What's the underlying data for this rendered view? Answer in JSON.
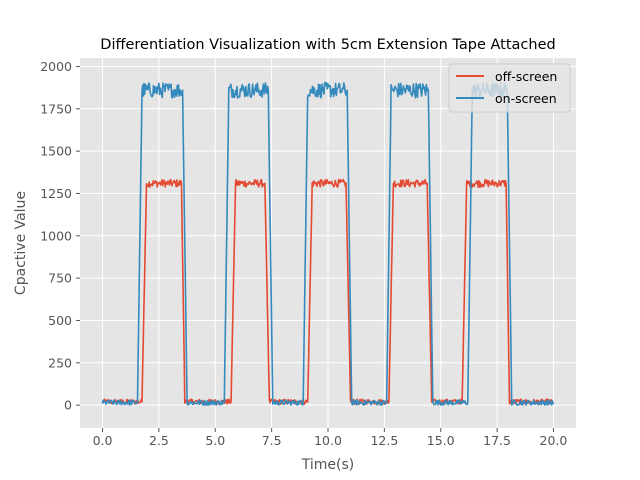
{
  "chart_data": {
    "type": "line",
    "title": "Differentiation Visualization with 5cm Extension Tape Attached",
    "xlabel": "Time(s)",
    "ylabel": "Cpactive Value",
    "xlim": [
      -1.0,
      21.0
    ],
    "ylim": [
      -135,
      2050
    ],
    "xticks": [
      0.0,
      2.5,
      5.0,
      7.5,
      10.0,
      12.5,
      15.0,
      17.5,
      20.0
    ],
    "xtick_labels": [
      "0.0",
      "2.5",
      "5.0",
      "7.5",
      "10.0",
      "12.5",
      "15.0",
      "17.5",
      "20.0"
    ],
    "yticks": [
      0,
      250,
      500,
      750,
      1000,
      1250,
      1500,
      1750,
      2000
    ],
    "ytick_labels": [
      "0",
      "250",
      "500",
      "750",
      "1000",
      "1250",
      "1500",
      "1750",
      "2000"
    ],
    "grid": true,
    "legend_position": "upper right",
    "background": "#E5E5E5",
    "series": [
      {
        "name": "off-screen",
        "color": "#E24A33",
        "x": [
          0.0,
          1.75,
          1.95,
          3.5,
          3.65,
          5.7,
          5.9,
          7.2,
          7.4,
          9.1,
          9.3,
          10.8,
          11.0,
          12.7,
          12.9,
          14.4,
          14.6,
          15.95,
          16.15,
          17.9,
          18.05,
          20.0
        ],
        "y": [
          20,
          20,
          1310,
          1310,
          20,
          20,
          1310,
          1310,
          20,
          20,
          1310,
          1310,
          20,
          20,
          1310,
          1310,
          20,
          20,
          1310,
          1310,
          20,
          20
        ]
      },
      {
        "name": "on-screen",
        "color": "#348ABD",
        "x": [
          0.0,
          1.55,
          1.75,
          3.55,
          3.75,
          5.4,
          5.6,
          7.35,
          7.55,
          8.9,
          9.1,
          10.85,
          11.05,
          12.6,
          12.8,
          14.45,
          14.65,
          16.2,
          16.4,
          17.95,
          18.15,
          20.0
        ],
        "y": [
          15,
          15,
          1860,
          1860,
          15,
          15,
          1860,
          1860,
          15,
          15,
          1860,
          1860,
          15,
          15,
          1860,
          1860,
          15,
          15,
          1860,
          1860,
          15,
          15
        ]
      }
    ]
  }
}
